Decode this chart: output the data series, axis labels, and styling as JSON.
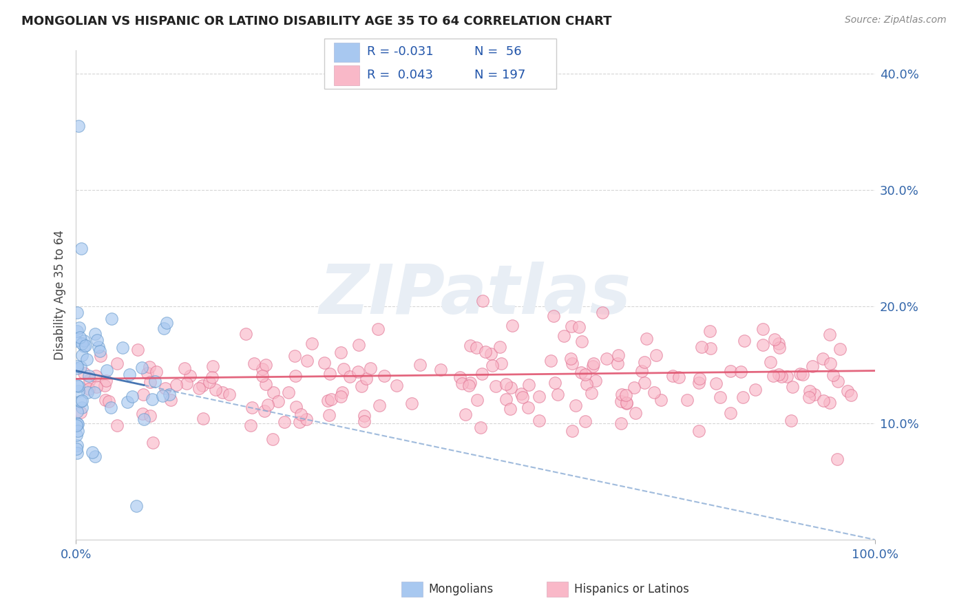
{
  "title": "MONGOLIAN VS HISPANIC OR LATINO DISABILITY AGE 35 TO 64 CORRELATION CHART",
  "source": "Source: ZipAtlas.com",
  "ylabel": "Disability Age 35 to 64",
  "right_yticks": [
    0.1,
    0.2,
    0.3,
    0.4
  ],
  "right_ytick_labels": [
    "10.0%",
    "20.0%",
    "30.0%",
    "40.0%"
  ],
  "xtick_labels": [
    "0.0%",
    "100.0%"
  ],
  "legend_r_mongolian": "-0.031",
  "legend_n_mongolian": "56",
  "legend_r_hispanic": "0.043",
  "legend_n_hispanic": "197",
  "mongolian_color": "#a8c8f0",
  "mongolian_edge": "#6699cc",
  "hispanic_color": "#f9b8c8",
  "hispanic_edge": "#e07090",
  "trend_mongolian_solid_color": "#3366aa",
  "trend_mongolian_dash_color": "#88aad4",
  "trend_hispanic_color": "#e05570",
  "background_color": "#ffffff",
  "grid_color": "#cccccc",
  "watermark_text": "ZIPatlas",
  "watermark_color": "#e8eef5",
  "legend_text_color": "#2255aa",
  "axis_label_color": "#3366aa",
  "title_color": "#222222",
  "ylim": [
    0.0,
    0.42
  ],
  "xlim": [
    0.0,
    1.0
  ],
  "seed": 42
}
